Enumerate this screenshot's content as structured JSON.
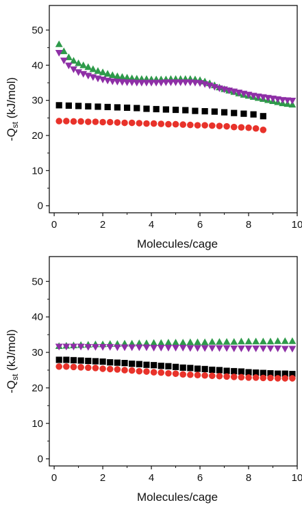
{
  "chart_data": [
    {
      "type": "scatter",
      "xlabel": "Molecules/cage",
      "ylabel_main": "-Q",
      "ylabel_sub": "st",
      "ylabel_unit": " (kJ/mol)",
      "xlim": [
        -0.2,
        10
      ],
      "ylim": [
        -2,
        57
      ],
      "xticks": [
        "0",
        "2",
        "4",
        "6",
        "8",
        "10"
      ],
      "yticks": [
        "0",
        "10",
        "20",
        "30",
        "40",
        "50"
      ],
      "series": [
        {
          "marker": "square",
          "color": "#000000",
          "x": [
            0.2,
            0.6,
            1.0,
            1.4,
            1.8,
            2.2,
            2.6,
            3.0,
            3.4,
            3.8,
            4.2,
            4.6,
            5.0,
            5.4,
            5.8,
            6.2,
            6.6,
            7.0,
            7.4,
            7.8,
            8.2,
            8.6
          ],
          "y": [
            28.6,
            28.5,
            28.4,
            28.3,
            28.2,
            28.1,
            28.0,
            27.9,
            27.8,
            27.6,
            27.5,
            27.4,
            27.3,
            27.2,
            27.0,
            26.9,
            26.8,
            26.6,
            26.4,
            26.2,
            26.0,
            25.5
          ]
        },
        {
          "marker": "circle",
          "color": "#e8322a",
          "x": [
            0.2,
            0.5,
            0.8,
            1.1,
            1.4,
            1.7,
            2.0,
            2.3,
            2.6,
            2.9,
            3.2,
            3.5,
            3.8,
            4.1,
            4.4,
            4.7,
            5.0,
            5.3,
            5.6,
            5.9,
            6.2,
            6.5,
            6.8,
            7.1,
            7.4,
            7.7,
            8.0,
            8.3,
            8.6
          ],
          "y": [
            24.1,
            24.1,
            24.0,
            24.0,
            23.9,
            23.9,
            23.8,
            23.8,
            23.7,
            23.6,
            23.6,
            23.5,
            23.4,
            23.4,
            23.3,
            23.2,
            23.2,
            23.1,
            23.0,
            22.9,
            22.9,
            22.8,
            22.7,
            22.6,
            22.4,
            22.3,
            22.2,
            22.0,
            21.6
          ]
        },
        {
          "marker": "triangle-up",
          "color": "#2e9a4a",
          "x": [
            0.2,
            0.4,
            0.6,
            0.8,
            1.0,
            1.2,
            1.4,
            1.6,
            1.8,
            2.0,
            2.2,
            2.4,
            2.6,
            2.8,
            3.0,
            3.2,
            3.4,
            3.6,
            3.8,
            4.0,
            4.2,
            4.4,
            4.6,
            4.8,
            5.0,
            5.2,
            5.4,
            5.6,
            5.8,
            6.0,
            6.2,
            6.4,
            6.6,
            6.8,
            7.0,
            7.2,
            7.4,
            7.6,
            7.8,
            8.0,
            8.2,
            8.4,
            8.6,
            8.8,
            9.0,
            9.2,
            9.4,
            9.6,
            9.8
          ],
          "y": [
            46.0,
            44.0,
            42.3,
            41.3,
            40.6,
            40.0,
            39.5,
            38.9,
            38.4,
            38.0,
            37.6,
            37.2,
            36.9,
            36.7,
            36.5,
            36.3,
            36.2,
            36.1,
            36.1,
            36.0,
            36.0,
            36.0,
            36.0,
            36.1,
            36.1,
            36.1,
            36.1,
            36.1,
            36.0,
            35.8,
            35.4,
            34.9,
            34.3,
            33.7,
            33.2,
            32.8,
            32.4,
            32.0,
            31.6,
            31.3,
            31.0,
            30.7,
            30.4,
            30.1,
            29.8,
            29.5,
            29.2,
            29.0,
            28.8
          ]
        },
        {
          "marker": "triangle-down",
          "color": "#8e2fa6",
          "x": [
            0.2,
            0.4,
            0.6,
            0.8,
            1.0,
            1.2,
            1.4,
            1.6,
            1.8,
            2.0,
            2.2,
            2.4,
            2.6,
            2.8,
            3.0,
            3.2,
            3.4,
            3.6,
            3.8,
            4.0,
            4.2,
            4.4,
            4.6,
            4.8,
            5.0,
            5.2,
            5.4,
            5.6,
            5.8,
            6.0,
            6.2,
            6.4,
            6.6,
            6.8,
            7.0,
            7.2,
            7.4,
            7.6,
            7.8,
            8.0,
            8.2,
            8.4,
            8.6,
            8.8,
            9.0,
            9.2,
            9.4,
            9.6,
            9.8
          ],
          "y": [
            43.5,
            41.3,
            39.9,
            38.8,
            38.0,
            37.5,
            37.0,
            36.6,
            36.2,
            35.9,
            35.6,
            35.4,
            35.3,
            35.2,
            35.1,
            35.1,
            35.0,
            35.0,
            35.0,
            35.0,
            35.0,
            35.0,
            35.1,
            35.1,
            35.1,
            35.1,
            35.1,
            35.1,
            35.0,
            34.9,
            34.6,
            34.2,
            33.8,
            33.4,
            33.1,
            32.8,
            32.5,
            32.2,
            31.9,
            31.6,
            31.3,
            31.1,
            30.9,
            30.7,
            30.5,
            30.3,
            30.1,
            30.0,
            29.9
          ]
        }
      ]
    },
    {
      "type": "scatter",
      "xlabel": "Molecules/cage",
      "ylabel_main": "-Q",
      "ylabel_sub": "st",
      "ylabel_unit": " (kJ/mol)",
      "xlim": [
        -0.2,
        10
      ],
      "ylim": [
        -2,
        57
      ],
      "xticks": [
        "0",
        "2",
        "4",
        "6",
        "8",
        "10"
      ],
      "yticks": [
        "0",
        "10",
        "20",
        "30",
        "40",
        "50"
      ],
      "series": [
        {
          "marker": "square",
          "color": "#000000",
          "x": [
            0.2,
            0.5,
            0.8,
            1.1,
            1.4,
            1.7,
            2.0,
            2.3,
            2.6,
            2.9,
            3.2,
            3.5,
            3.8,
            4.1,
            4.4,
            4.7,
            5.0,
            5.3,
            5.6,
            5.9,
            6.2,
            6.5,
            6.8,
            7.1,
            7.4,
            7.7,
            8.0,
            8.3,
            8.6,
            8.9,
            9.2,
            9.5,
            9.8
          ],
          "y": [
            27.9,
            27.9,
            27.8,
            27.7,
            27.6,
            27.5,
            27.4,
            27.2,
            27.1,
            27.0,
            26.8,
            26.7,
            26.5,
            26.4,
            26.2,
            26.1,
            25.9,
            25.7,
            25.6,
            25.4,
            25.3,
            25.1,
            25.0,
            24.8,
            24.7,
            24.6,
            24.4,
            24.3,
            24.2,
            24.1,
            24.0,
            24.0,
            23.9
          ]
        },
        {
          "marker": "circle",
          "color": "#e8322a",
          "x": [
            0.2,
            0.5,
            0.8,
            1.1,
            1.4,
            1.7,
            2.0,
            2.3,
            2.6,
            2.9,
            3.2,
            3.5,
            3.8,
            4.1,
            4.4,
            4.7,
            5.0,
            5.3,
            5.6,
            5.9,
            6.2,
            6.5,
            6.8,
            7.1,
            7.4,
            7.7,
            8.0,
            8.3,
            8.6,
            8.9,
            9.2,
            9.5,
            9.8
          ],
          "y": [
            26.0,
            26.0,
            25.9,
            25.8,
            25.7,
            25.6,
            25.4,
            25.3,
            25.2,
            25.0,
            24.9,
            24.7,
            24.6,
            24.4,
            24.3,
            24.1,
            24.0,
            23.8,
            23.7,
            23.6,
            23.5,
            23.4,
            23.3,
            23.2,
            23.1,
            23.0,
            22.9,
            22.9,
            22.8,
            22.8,
            22.7,
            22.7,
            22.7
          ]
        },
        {
          "marker": "triangle-up",
          "color": "#2e9a4a",
          "x": [
            0.2,
            0.5,
            0.8,
            1.1,
            1.4,
            1.7,
            2.0,
            2.3,
            2.6,
            2.9,
            3.2,
            3.5,
            3.8,
            4.1,
            4.4,
            4.7,
            5.0,
            5.3,
            5.6,
            5.9,
            6.2,
            6.5,
            6.8,
            7.1,
            7.4,
            7.7,
            8.0,
            8.3,
            8.6,
            8.9,
            9.2,
            9.5,
            9.8
          ],
          "y": [
            31.8,
            31.9,
            32.0,
            32.1,
            32.2,
            32.3,
            32.3,
            32.4,
            32.4,
            32.5,
            32.5,
            32.6,
            32.6,
            32.7,
            32.7,
            32.8,
            32.8,
            32.8,
            32.9,
            32.9,
            32.9,
            33.0,
            33.0,
            33.0,
            33.0,
            33.1,
            33.1,
            33.1,
            33.1,
            33.1,
            33.2,
            33.2,
            33.2
          ]
        },
        {
          "marker": "triangle-down",
          "color": "#8e2fa6",
          "x": [
            0.2,
            0.5,
            0.8,
            1.1,
            1.4,
            1.7,
            2.0,
            2.3,
            2.6,
            2.9,
            3.2,
            3.5,
            3.8,
            4.1,
            4.4,
            4.7,
            5.0,
            5.3,
            5.6,
            5.9,
            6.2,
            6.5,
            6.8,
            7.1,
            7.4,
            7.7,
            8.0,
            8.3,
            8.6,
            8.9,
            9.2,
            9.5,
            9.8
          ],
          "y": [
            31.6,
            31.6,
            31.6,
            31.6,
            31.5,
            31.5,
            31.5,
            31.5,
            31.4,
            31.4,
            31.4,
            31.4,
            31.4,
            31.3,
            31.3,
            31.3,
            31.3,
            31.3,
            31.2,
            31.2,
            31.2,
            31.2,
            31.2,
            31.2,
            31.1,
            31.1,
            31.1,
            31.1,
            31.1,
            31.1,
            31.1,
            31.0,
            31.0
          ]
        }
      ]
    }
  ]
}
